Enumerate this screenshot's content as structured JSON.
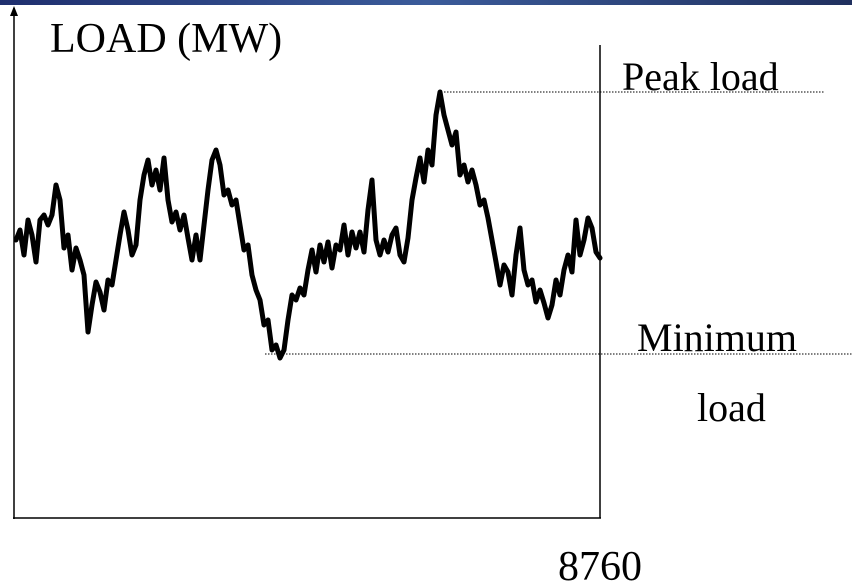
{
  "chart_data": {
    "type": "line",
    "ylabel": "LOAD (MW)",
    "xlim": [
      0,
      8760
    ],
    "xticks": [
      8760
    ],
    "ylim": [
      0,
      100
    ],
    "color": "#000000",
    "peak_label": "Peak load",
    "min_label": [
      "Minimum",
      "load"
    ],
    "values": [
      55.6,
      57.6,
      52.6,
      59.6,
      56.6,
      51.2,
      59.6,
      60.6,
      58.6,
      60.6,
      66.6,
      63.6,
      54,
      56.6,
      49.6,
      54,
      51.6,
      48.6,
      37.2,
      42.6,
      47.2,
      45.2,
      41.6,
      47.6,
      46.6,
      51.6,
      56.6,
      61.2,
      57.6,
      52.6,
      54.6,
      63.6,
      68.6,
      71.6,
      66.6,
      69.6,
      65.6,
      72,
      63.6,
      59.2,
      61.2,
      57.6,
      60.6,
      56,
      51.6,
      56.6,
      51.6,
      58.6,
      65.6,
      71.6,
      73.6,
      70.6,
      64.6,
      65.6,
      62.6,
      63.6,
      58.6,
      53.6,
      54.6,
      48.6,
      45.6,
      43.6,
      38.6,
      39.6,
      33.6,
      34.6,
      32,
      33.6,
      39.6,
      44.6,
      43.6,
      46,
      44.6,
      49.6,
      53.6,
      49.2,
      54.6,
      51.2,
      55.2,
      50,
      54.6,
      53.6,
      58.6,
      52.6,
      57.2,
      54,
      57.2,
      53.2,
      61.6,
      67.6,
      55.6,
      52.6,
      55.6,
      53.2,
      56.6,
      58,
      52.6,
      51.2,
      56,
      63.6,
      68,
      72,
      67.2,
      73.6,
      70.6,
      80.6,
      85.2,
      80.6,
      77.6,
      74.6,
      77.2,
      68.6,
      70.6,
      67.2,
      69.6,
      66.6,
      62.6,
      63.6,
      60,
      55.6,
      51.2,
      46.6,
      50.6,
      49.2,
      44.6,
      52.6,
      58,
      49.6,
      46.6,
      47.6,
      43.2,
      45.6,
      43,
      40,
      42.6,
      47.6,
      44.6,
      49.6,
      52.6,
      49.2,
      59.6,
      52.6,
      55.6,
      60,
      58,
      53.2,
      52
    ]
  }
}
